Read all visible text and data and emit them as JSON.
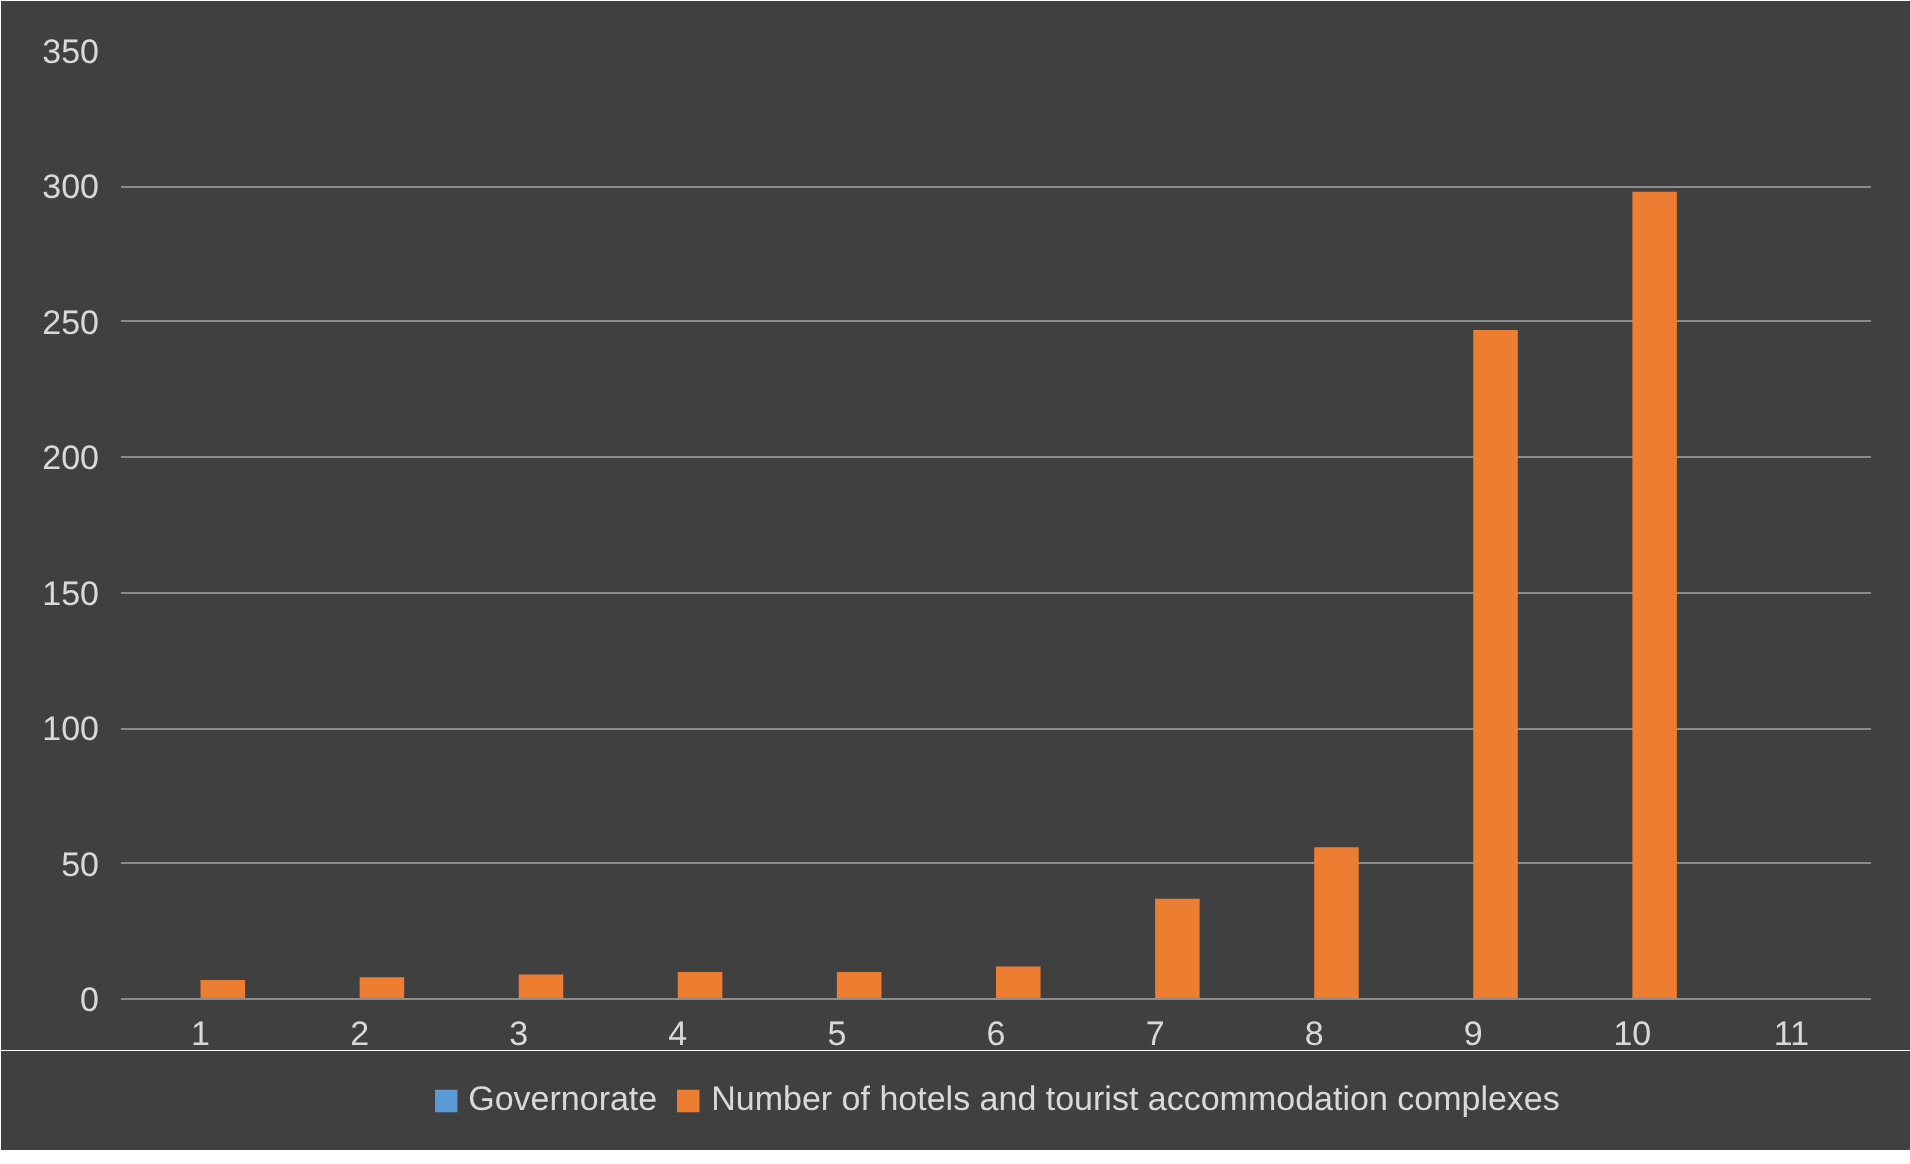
{
  "chart_data": {
    "type": "bar",
    "categories": [
      "1",
      "2",
      "3",
      "4",
      "5",
      "6",
      "7",
      "8",
      "9",
      "10",
      "11"
    ],
    "series": [
      {
        "name": "Governorate",
        "color": "#5b9bd5",
        "values": [
          null,
          null,
          null,
          null,
          null,
          null,
          null,
          null,
          null,
          null,
          null
        ]
      },
      {
        "name": "Number of hotels and tourist accommodation complexes",
        "color": "#ed7d31",
        "values": [
          7,
          8,
          9,
          10,
          10,
          12,
          37,
          56,
          247,
          298,
          null
        ]
      }
    ],
    "ylim": [
      0,
      350
    ],
    "yticks": [
      0,
      50,
      100,
      150,
      200,
      250,
      300,
      350
    ],
    "grid": "y",
    "legend": "bottom"
  }
}
